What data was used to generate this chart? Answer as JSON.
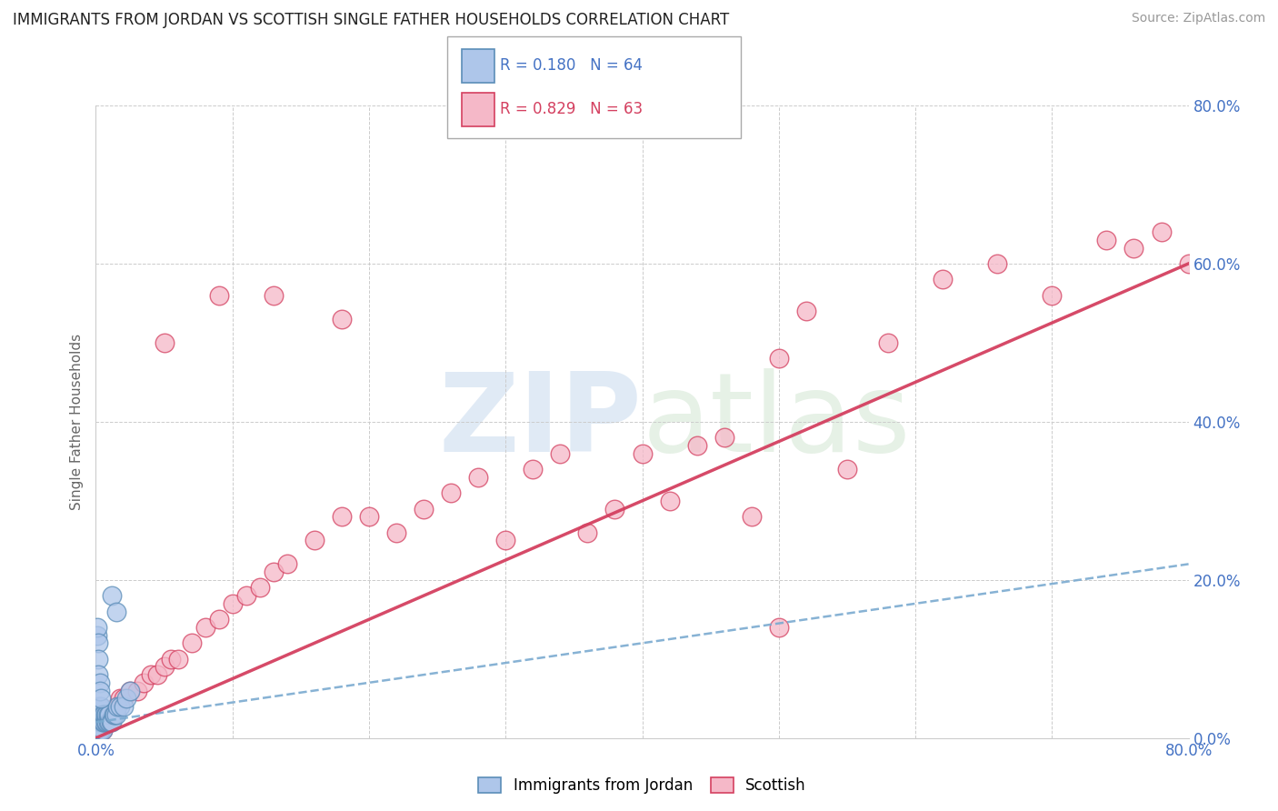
{
  "title": "IMMIGRANTS FROM JORDAN VS SCOTTISH SINGLE FATHER HOUSEHOLDS CORRELATION CHART",
  "source": "Source: ZipAtlas.com",
  "ylabel": "Single Father Households",
  "jordan_color": "#aec6ea",
  "jordan_edge_color": "#5b8db8",
  "scottish_color": "#f5b8c8",
  "scottish_edge_color": "#d44060",
  "jordan_line_color": "#7aaad0",
  "scottish_line_color": "#e04060",
  "xlim": [
    0.0,
    0.8
  ],
  "ylim": [
    0.0,
    0.8
  ],
  "jordan_R": 0.18,
  "jordan_N": 64,
  "scottish_R": 0.829,
  "scottish_N": 63,
  "jordan_x": [
    0.001,
    0.001,
    0.001,
    0.001,
    0.001,
    0.001,
    0.001,
    0.001,
    0.001,
    0.001,
    0.002,
    0.002,
    0.002,
    0.002,
    0.002,
    0.002,
    0.002,
    0.002,
    0.002,
    0.002,
    0.003,
    0.003,
    0.003,
    0.003,
    0.003,
    0.003,
    0.003,
    0.004,
    0.004,
    0.004,
    0.004,
    0.005,
    0.005,
    0.005,
    0.006,
    0.006,
    0.007,
    0.007,
    0.008,
    0.008,
    0.009,
    0.009,
    0.01,
    0.01,
    0.011,
    0.012,
    0.013,
    0.014,
    0.015,
    0.016,
    0.018,
    0.02,
    0.022,
    0.025,
    0.001,
    0.001,
    0.002,
    0.002,
    0.002,
    0.003,
    0.003,
    0.004,
    0.012,
    0.015
  ],
  "jordan_y": [
    0.01,
    0.01,
    0.01,
    0.01,
    0.01,
    0.02,
    0.02,
    0.02,
    0.02,
    0.03,
    0.01,
    0.01,
    0.01,
    0.02,
    0.02,
    0.02,
    0.03,
    0.03,
    0.03,
    0.04,
    0.01,
    0.01,
    0.02,
    0.02,
    0.03,
    0.03,
    0.04,
    0.01,
    0.02,
    0.03,
    0.04,
    0.01,
    0.02,
    0.03,
    0.02,
    0.03,
    0.02,
    0.03,
    0.02,
    0.03,
    0.02,
    0.03,
    0.02,
    0.03,
    0.02,
    0.02,
    0.03,
    0.03,
    0.03,
    0.04,
    0.04,
    0.04,
    0.05,
    0.06,
    0.13,
    0.14,
    0.12,
    0.1,
    0.08,
    0.07,
    0.06,
    0.05,
    0.18,
    0.16
  ],
  "scottish_x": [
    0.001,
    0.002,
    0.003,
    0.004,
    0.005,
    0.006,
    0.007,
    0.008,
    0.009,
    0.01,
    0.012,
    0.015,
    0.018,
    0.02,
    0.025,
    0.03,
    0.035,
    0.04,
    0.045,
    0.05,
    0.055,
    0.06,
    0.07,
    0.08,
    0.09,
    0.1,
    0.11,
    0.12,
    0.13,
    0.14,
    0.16,
    0.18,
    0.2,
    0.22,
    0.24,
    0.26,
    0.28,
    0.3,
    0.32,
    0.34,
    0.36,
    0.38,
    0.4,
    0.42,
    0.44,
    0.46,
    0.48,
    0.5,
    0.52,
    0.55,
    0.58,
    0.62,
    0.66,
    0.7,
    0.74,
    0.76,
    0.78,
    0.8,
    0.09,
    0.13,
    0.18,
    0.05,
    0.5
  ],
  "scottish_y": [
    0.01,
    0.01,
    0.01,
    0.02,
    0.01,
    0.02,
    0.02,
    0.02,
    0.03,
    0.03,
    0.03,
    0.04,
    0.05,
    0.05,
    0.06,
    0.06,
    0.07,
    0.08,
    0.08,
    0.09,
    0.1,
    0.1,
    0.12,
    0.14,
    0.15,
    0.17,
    0.18,
    0.19,
    0.21,
    0.22,
    0.25,
    0.28,
    0.28,
    0.26,
    0.29,
    0.31,
    0.33,
    0.25,
    0.34,
    0.36,
    0.26,
    0.29,
    0.36,
    0.3,
    0.37,
    0.38,
    0.28,
    0.48,
    0.54,
    0.34,
    0.5,
    0.58,
    0.6,
    0.56,
    0.63,
    0.62,
    0.64,
    0.6,
    0.56,
    0.56,
    0.53,
    0.5,
    0.14
  ]
}
